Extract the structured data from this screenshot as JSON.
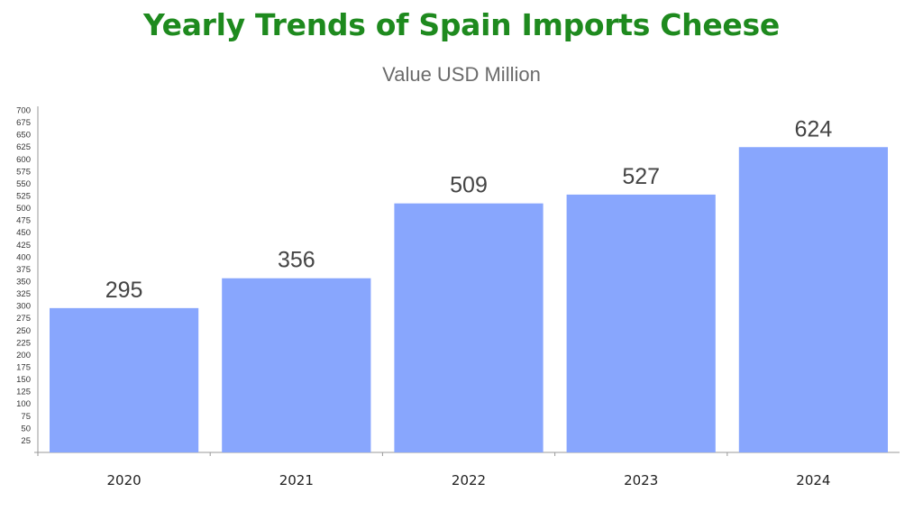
{
  "header": {
    "title": "Yearly Trends of Spain Imports Cheese",
    "subtitle": "Value USD Million"
  },
  "colors": {
    "title": "#1e8a1e",
    "bar": "#88a6fd",
    "axis": "#999999"
  },
  "chart_data": {
    "type": "bar",
    "title": "Yearly Trends of Spain Imports Cheese",
    "ylabel": "Value USD Million",
    "xlabel": "",
    "categories": [
      "2020",
      "2021",
      "2022",
      "2023",
      "2024"
    ],
    "values": [
      295,
      356,
      509,
      527,
      624
    ],
    "ylim": [
      0,
      700
    ],
    "ytick_step": 25,
    "grid": false,
    "legend": "none"
  }
}
